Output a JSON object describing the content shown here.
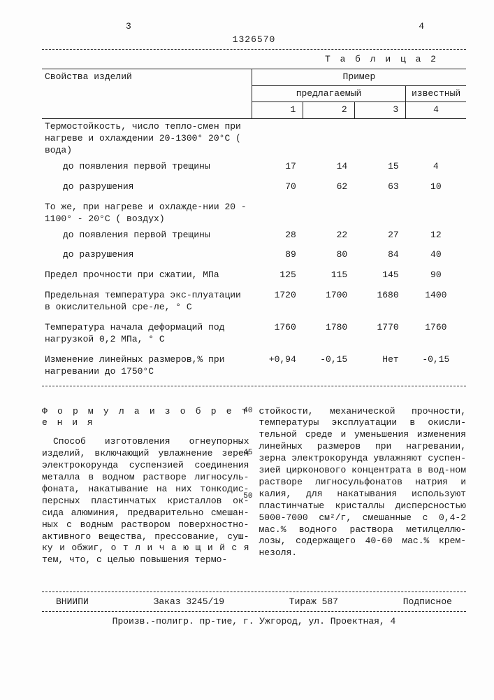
{
  "header": {
    "left_page": "3",
    "doc_number": "1326570",
    "right_page": "4",
    "table_label": "Т а б л и ц а 2"
  },
  "table": {
    "col_prop": "Свойства  изделий",
    "col_primer": "Пример",
    "sub_predl": "предлагаемый",
    "sub_izv": "известный",
    "c1": "1",
    "c2": "2",
    "c3": "3",
    "c4": "4",
    "rows": [
      {
        "label": "Термостойкость, число тепло-смен при нагреве и охлаждении 20-1300° 20°С ( вода)",
        "v": [
          "",
          "",
          "",
          ""
        ]
      },
      {
        "label": "до появления первой трещины",
        "sub": true,
        "v": [
          "17",
          "14",
          "15",
          "4"
        ]
      },
      {
        "label": "до разрушения",
        "sub": true,
        "v": [
          "70",
          "62",
          "63",
          "10"
        ]
      },
      {
        "label": "То же, при нагреве и охлажде-нии 20 - 1100° - 20°С ( воздух)",
        "v": [
          "",
          "",
          "",
          ""
        ]
      },
      {
        "label": "до появления первой трещины",
        "sub": true,
        "v": [
          "28",
          "22",
          "27",
          "12"
        ]
      },
      {
        "label": "до разрушения",
        "sub": true,
        "v": [
          "89",
          "80",
          "84",
          "40"
        ]
      },
      {
        "label": "Предел прочности при сжатии, МПа",
        "v": [
          "125",
          "115",
          "145",
          "90"
        ]
      },
      {
        "label": "Предельная температура экс-плуатации в окислительной сре-ле, ° С",
        "v": [
          "1720",
          "1700",
          "1680",
          "1400"
        ]
      },
      {
        "label": "Температура начала деформаций под нагрузкой 0,2 МПа, ° С",
        "v": [
          "1760",
          "1780",
          "1770",
          "1760"
        ]
      },
      {
        "label": "Изменение линейных размеров,% при нагревании до 1750°С",
        "v": [
          "+0,94",
          "-0,15",
          "Нет",
          "-0,15"
        ]
      }
    ]
  },
  "formula": {
    "title": "Ф о р м у л а   и з о б р е т е н и я",
    "left": "Способ изготовления огнеупорных изделий, включающий увлажнение зерен электрокорунда суспензией соединения металла в водном растворе лигносуль-фоната, накатывание на них тонкодис-персных пластинчатых кристаллов ок-сида алюминия, предварительно смешан-ных с водным раствором поверхностно-активного вещества, прессование, суш-ку и обжиг,  о т л и ч а ю щ и й с я  тем, что, с целью повышения термо-",
    "right": "стойкости, механической прочности, температуры эксплуатации в окисли-тельной среде и уменьшения изменения линейных размеров при нагревании, зерна электрокорунда увлажняют суспен-зией цирконового концентрата в вод-ном растворе лигносульфонатов натрия и калия, для накатывания используют пластинчатые кристаллы дисперсностью 5000-7000 см²/г, смешанные с 0,4-2 мас.% водного раствора метилцеллю-лозы, содержащего 40-60 мас.% крем-незоля.",
    "m40": "40",
    "m45": "45",
    "m50": "50"
  },
  "footer": {
    "org": "ВНИИПИ",
    "zakaz": "Заказ 3245/19",
    "tirazh": "Тираж 587",
    "podp": "Подписное",
    "addr": "Произв.-полигр. пр-тие, г. Ужгород, ул. Проектная, 4"
  }
}
